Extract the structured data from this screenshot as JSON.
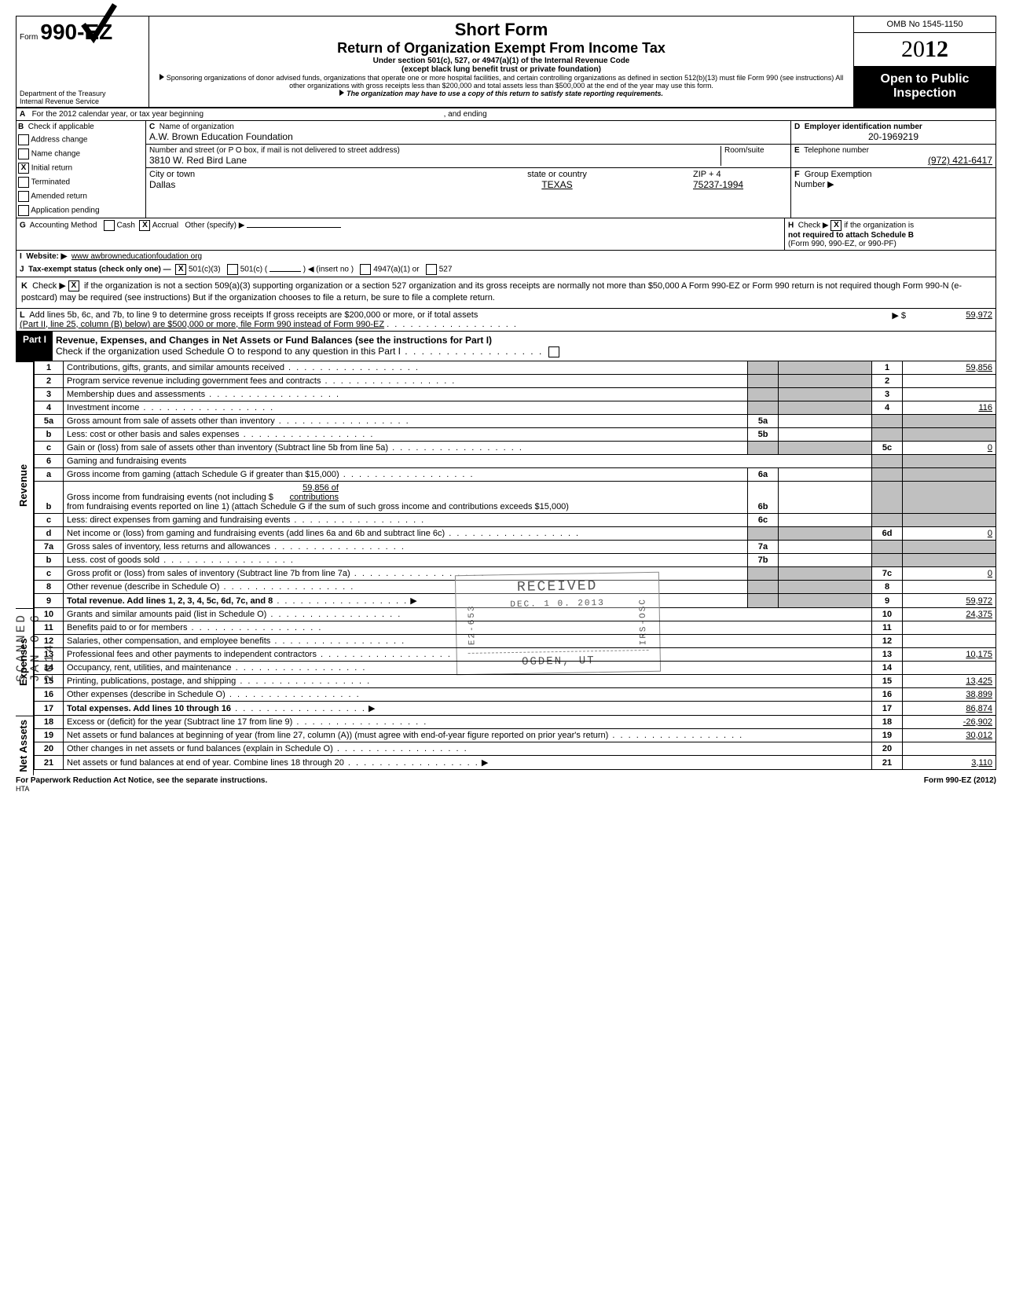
{
  "meta": {
    "omb": "OMB No 1545-1150",
    "year_prefix": "20",
    "year_bold": "12",
    "open1": "Open to Public",
    "open2": "Inspection",
    "footer_form": "Form 990-EZ (2012)",
    "footer_notice": "For Paperwork Reduction Act Notice, see the separate instructions.",
    "hta": "HTA",
    "scanned": "SCANNED JAN 0 6 2014"
  },
  "header": {
    "form_label": "Form",
    "form_num": "990-EZ",
    "short": "Short Form",
    "title": "Return of Organization Exempt From Income Tax",
    "sub1": "Under section 501(c), 527, or 4947(a)(1) of the Internal Revenue Code",
    "sub2": "(except black lung benefit trust or private foundation)",
    "sub3": "Sponsoring organizations of donor advised funds, organizations that operate one or more hospital facilities, and certain controlling organizations as defined in section 512(b)(13) must file Form 990 (see instructions) All other organizations with gross receipts less than $200,000 and total assets less than $500,000 at the end of the year may use this form.",
    "sub4": "The organization may have to use a copy of this return to satisfy state reporting requirements.",
    "dept1": "Department of the Treasury",
    "dept2": "Internal Revenue Service"
  },
  "section_a": {
    "label": "A",
    "text": "For the 2012 calendar year, or tax year beginning",
    "ending": ", and ending"
  },
  "section_b": {
    "label": "B",
    "check_label": "Check if applicable",
    "items": [
      "Address change",
      "Name change",
      "Initial return",
      "Terminated",
      "Amended return",
      "Application pending"
    ],
    "checked_index": 2
  },
  "section_c": {
    "label": "C",
    "name_label": "Name of organization",
    "name": "A.W. Brown Education Foundation",
    "addr_label": "Number and street (or P O  box, if mail is not delivered to street address)",
    "room_label": "Room/suite",
    "addr": "3810 W. Red Bird Lane",
    "city_label": "City or town",
    "state_label": "state or country",
    "zip_label": "ZIP + 4",
    "city": "Dallas",
    "state": "TEXAS",
    "zip": "75237-1994"
  },
  "section_d": {
    "label": "D",
    "title": "Employer identification number",
    "value": "20-1969219"
  },
  "section_e": {
    "label": "E",
    "title": "Telephone number",
    "value": "(972) 421-6417"
  },
  "section_f": {
    "label": "F",
    "title": "Group Exemption",
    "title2": "Number ▶",
    "value": ""
  },
  "row_g": {
    "label": "G",
    "text": "Accounting Method",
    "cash": "Cash",
    "accrual": "Accrual",
    "other": "Other (specify) ▶",
    "accrual_checked": "X"
  },
  "row_h": {
    "label": "H",
    "text": "Check ▶",
    "x": "X",
    "text2": "if the organization is",
    "text3": "not required to attach Schedule B",
    "text4": "(Form 990, 990-EZ, or 990-PF)"
  },
  "row_i": {
    "label": "I",
    "text": "Website: ▶",
    "value": "www awbrowneducationfoudation org"
  },
  "row_j": {
    "label": "J",
    "text": "Tax-exempt status (check only one) —",
    "opt1": "501(c)(3)",
    "opt1_x": "X",
    "opt2": "501(c) (",
    "opt2b": ")  ◀ (insert no )",
    "opt3": "4947(a)(1) or",
    "opt4": "527"
  },
  "row_k": {
    "label": "K",
    "text": "Check ▶",
    "x": "X",
    "body": "if the organization is not a section 509(a)(3) supporting organization or a section 527 organization and its gross receipts are normally not more than $50,000  A Form 990-EZ or Form 990 return is not required though Form 990-N (e-postcard) may be required (see instructions)  But if the organization chooses to file a return, be sure to file a complete return."
  },
  "row_l": {
    "label": "L",
    "text": "Add lines 5b, 6c, and 7b, to line 9 to determine gross receipts  If gross receipts are $200,000 or more, or if total assets",
    "text2": "(Part II, line  25, column (B) below) are $500,000 or more, file Form 990 instead of Form 990-EZ",
    "arrow": "▶ $",
    "value": "59,972"
  },
  "part1": {
    "label": "Part I",
    "title": "Revenue, Expenses, and Changes in Net Assets or Fund Balances (see the instructions for Part I)",
    "sub": "Check if the organization used Schedule O to respond to any question in this Part I"
  },
  "stamp": {
    "received": "RECEIVED",
    "date": "DEC. 1 0. 2013",
    "e2": "E2-653",
    "irs": "IRS-OSC",
    "ogden": "OGDEN, UT"
  },
  "sections": {
    "revenue": "Revenue",
    "expenses": "Expenses",
    "net": "Net Assets"
  },
  "lines": {
    "1": {
      "n": "1",
      "d": "Contributions, gifts, grants, and similar amounts received",
      "rn": "1",
      "v": "59,856"
    },
    "2": {
      "n": "2",
      "d": "Program service revenue including government fees and contracts",
      "rn": "2",
      "v": ""
    },
    "3": {
      "n": "3",
      "d": "Membership dues and assessments",
      "rn": "3",
      "v": ""
    },
    "4": {
      "n": "4",
      "d": "Investment income",
      "rn": "4",
      "v": "116"
    },
    "5a": {
      "n": "5a",
      "d": "Gross amount from sale of assets other than inventory",
      "in": "5a",
      "iv": ""
    },
    "5b": {
      "n": "b",
      "d": "Less: cost or other basis and sales expenses",
      "in": "5b",
      "iv": ""
    },
    "5c": {
      "n": "c",
      "d": "Gain or (loss) from sale of assets other than inventory (Subtract line 5b from line 5a)",
      "rn": "5c",
      "v": "0"
    },
    "6": {
      "n": "6",
      "d": "Gaming and fundraising events"
    },
    "6a": {
      "n": "a",
      "d": "Gross income from gaming (attach Schedule G if greater than $15,000)",
      "in": "6a",
      "iv": ""
    },
    "6b": {
      "n": "b",
      "d": "Gross income from fundraising events (not including   $",
      "d2": "59,856 of contributions",
      "d3": "from fundraising events reported on line 1) (attach Schedule G if the sum of such gross income and contributions exceeds $15,000)",
      "in": "6b",
      "iv": ""
    },
    "6c": {
      "n": "c",
      "d": "Less: direct expenses from gaming and fundraising events",
      "in": "6c",
      "iv": ""
    },
    "6d": {
      "n": "d",
      "d": "Net income or (loss) from gaming and fundraising events (add lines 6a and 6b and subtract line 6c)",
      "rn": "6d",
      "v": "0"
    },
    "7a": {
      "n": "7a",
      "d": "Gross sales of inventory, less returns and allowances",
      "in": "7a",
      "iv": ""
    },
    "7b": {
      "n": "b",
      "d": "Less. cost of goods sold",
      "in": "7b",
      "iv": ""
    },
    "7c": {
      "n": "c",
      "d": "Gross profit or (loss) from sales of inventory (Subtract line 7b from line 7a)",
      "rn": "7c",
      "v": "0"
    },
    "8": {
      "n": "8",
      "d": "Other revenue (describe in Schedule O)",
      "rn": "8",
      "v": ""
    },
    "9": {
      "n": "9",
      "d": "Total revenue. Add lines 1, 2, 3, 4, 5c, 6d, 7c, and 8",
      "rn": "9",
      "v": "59,972",
      "arrow": "▶"
    },
    "10": {
      "n": "10",
      "d": "Grants and similar amounts paid (list in Schedule O)",
      "rn": "10",
      "v": "24,375"
    },
    "11": {
      "n": "11",
      "d": "Benefits paid to or for members",
      "rn": "11",
      "v": ""
    },
    "12": {
      "n": "12",
      "d": "Salaries, other compensation, and employee benefits",
      "rn": "12",
      "v": ""
    },
    "13": {
      "n": "13",
      "d": "Professional fees and other payments to independent contractors",
      "rn": "13",
      "v": "10,175"
    },
    "14": {
      "n": "14",
      "d": "Occupancy, rent, utilities, and maintenance",
      "rn": "14",
      "v": ""
    },
    "15": {
      "n": "15",
      "d": "Printing, publications, postage, and shipping",
      "rn": "15",
      "v": "13,425"
    },
    "16": {
      "n": "16",
      "d": "Other expenses (describe in Schedule O)",
      "rn": "16",
      "v": "38,899"
    },
    "17": {
      "n": "17",
      "d": "Total expenses. Add lines 10 through 16",
      "rn": "17",
      "v": "86,874",
      "arrow": "▶"
    },
    "18": {
      "n": "18",
      "d": "Excess or (deficit) for the year (Subtract line 17 from line 9)",
      "rn": "18",
      "v": "-26,902"
    },
    "19": {
      "n": "19",
      "d": "Net assets or fund balances at beginning of year (from line 27, column (A)) (must agree with end-of-year figure reported on prior year's return)",
      "rn": "19",
      "v": "30,012"
    },
    "20": {
      "n": "20",
      "d": "Other changes in net assets or fund balances (explain in Schedule O)",
      "rn": "20",
      "v": ""
    },
    "21": {
      "n": "21",
      "d": "Net assets or fund balances at end of year. Combine lines 18 through 20",
      "rn": "21",
      "v": "3,110",
      "arrow": "▶"
    }
  }
}
